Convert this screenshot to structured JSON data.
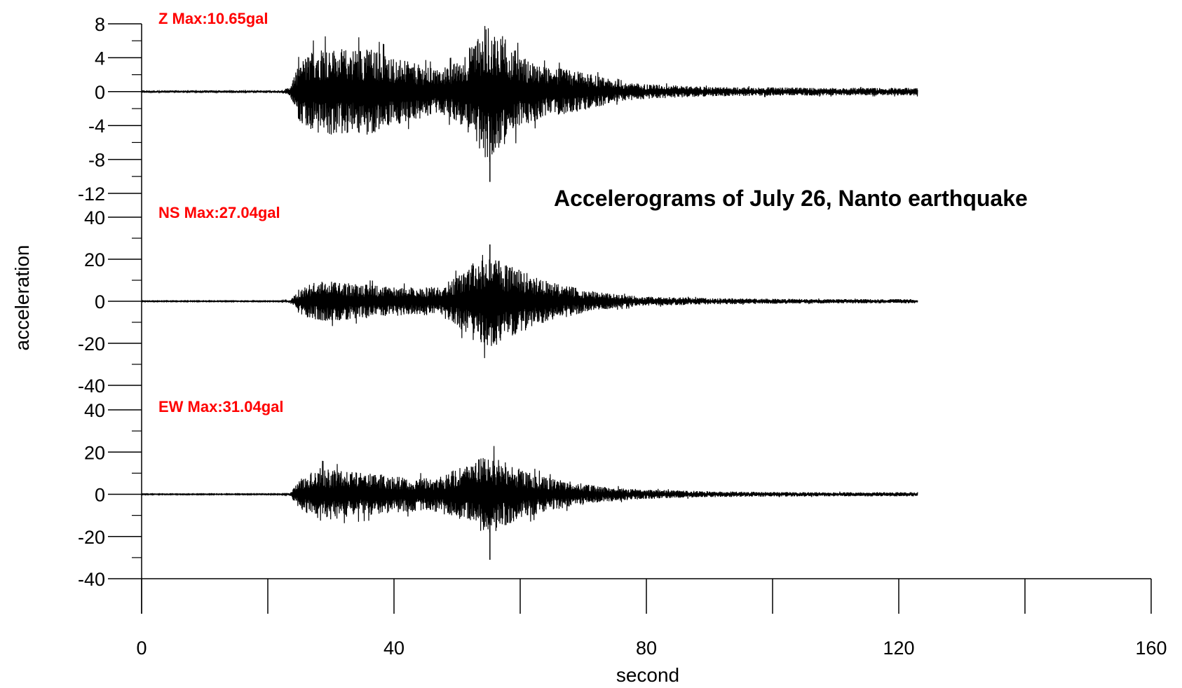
{
  "chart_data": {
    "type": "line",
    "title": "Accelerograms of July 26, Nanto earthquake",
    "xlabel": "second",
    "ylabel": "acceleration",
    "xlim": [
      0,
      160
    ],
    "x_ticks": [
      "0",
      "40",
      "80",
      "120",
      "160"
    ],
    "panels": [
      {
        "name": "Z",
        "label": "Z Max:10.65gal",
        "ylim": [
          -12,
          8
        ],
        "y_ticks": [
          "8",
          "4",
          "0",
          "-4",
          "-8",
          "-12"
        ],
        "y_tick_values": [
          8,
          4,
          0,
          -4,
          -8,
          -12
        ],
        "max_abs": 10.65,
        "envelope": {
          "t": [
            0,
            22,
            23.5,
            25,
            28,
            32,
            36,
            40,
            44,
            47,
            50,
            53,
            55,
            57,
            60,
            64,
            68,
            72,
            76,
            80,
            90,
            100,
            110,
            123
          ],
          "amp": [
            0.15,
            0.15,
            0.5,
            3.5,
            5.3,
            5.0,
            5.2,
            4.0,
            3.2,
            2.6,
            3.5,
            6.2,
            8.5,
            6.8,
            4.3,
            2.9,
            2.6,
            1.9,
            1.1,
            0.9,
            0.55,
            0.5,
            0.45,
            0.45
          ]
        }
      },
      {
        "name": "NS",
        "label": "NS Max:27.04gal",
        "ylim": [
          -40,
          40
        ],
        "y_ticks": [
          "40",
          "20",
          "0",
          "-20",
          "-40"
        ],
        "y_tick_values": [
          40,
          20,
          0,
          -20,
          -40
        ],
        "max_abs": 27.04,
        "envelope": {
          "t": [
            0,
            22,
            23.5,
            25,
            28,
            32,
            36,
            40,
            44,
            47,
            50,
            53,
            55,
            57,
            60,
            64,
            68,
            72,
            76,
            80,
            90,
            100,
            110,
            123
          ],
          "amp": [
            0.2,
            0.2,
            0.6,
            6,
            10,
            9,
            8,
            7,
            6.5,
            7,
            12,
            20,
            24,
            19,
            15,
            10,
            7,
            4.5,
            3,
            2.2,
            1.5,
            1.2,
            1.0,
            1.0
          ]
        }
      },
      {
        "name": "EW",
        "label": "EW Max:31.04gal",
        "ylim": [
          -40,
          40
        ],
        "y_ticks": [
          "40",
          "20",
          "0",
          "-20",
          "-40"
        ],
        "y_tick_values": [
          40,
          20,
          0,
          -20,
          -40
        ],
        "max_abs": 31.04,
        "envelope": {
          "t": [
            0,
            22,
            23.5,
            25,
            28,
            32,
            36,
            40,
            44,
            47,
            50,
            53,
            55,
            57,
            60,
            64,
            68,
            72,
            76,
            80,
            90,
            100,
            110,
            123
          ],
          "amp": [
            0.2,
            0.2,
            0.6,
            7,
            13,
            11,
            10,
            9,
            8,
            8.5,
            12,
            16,
            20,
            16,
            12,
            8,
            6,
            4,
            3,
            2.2,
            1.4,
            1.1,
            1.0,
            1.0
          ]
        }
      }
    ],
    "line_color": "#000000",
    "label_color": "#ff0000"
  }
}
